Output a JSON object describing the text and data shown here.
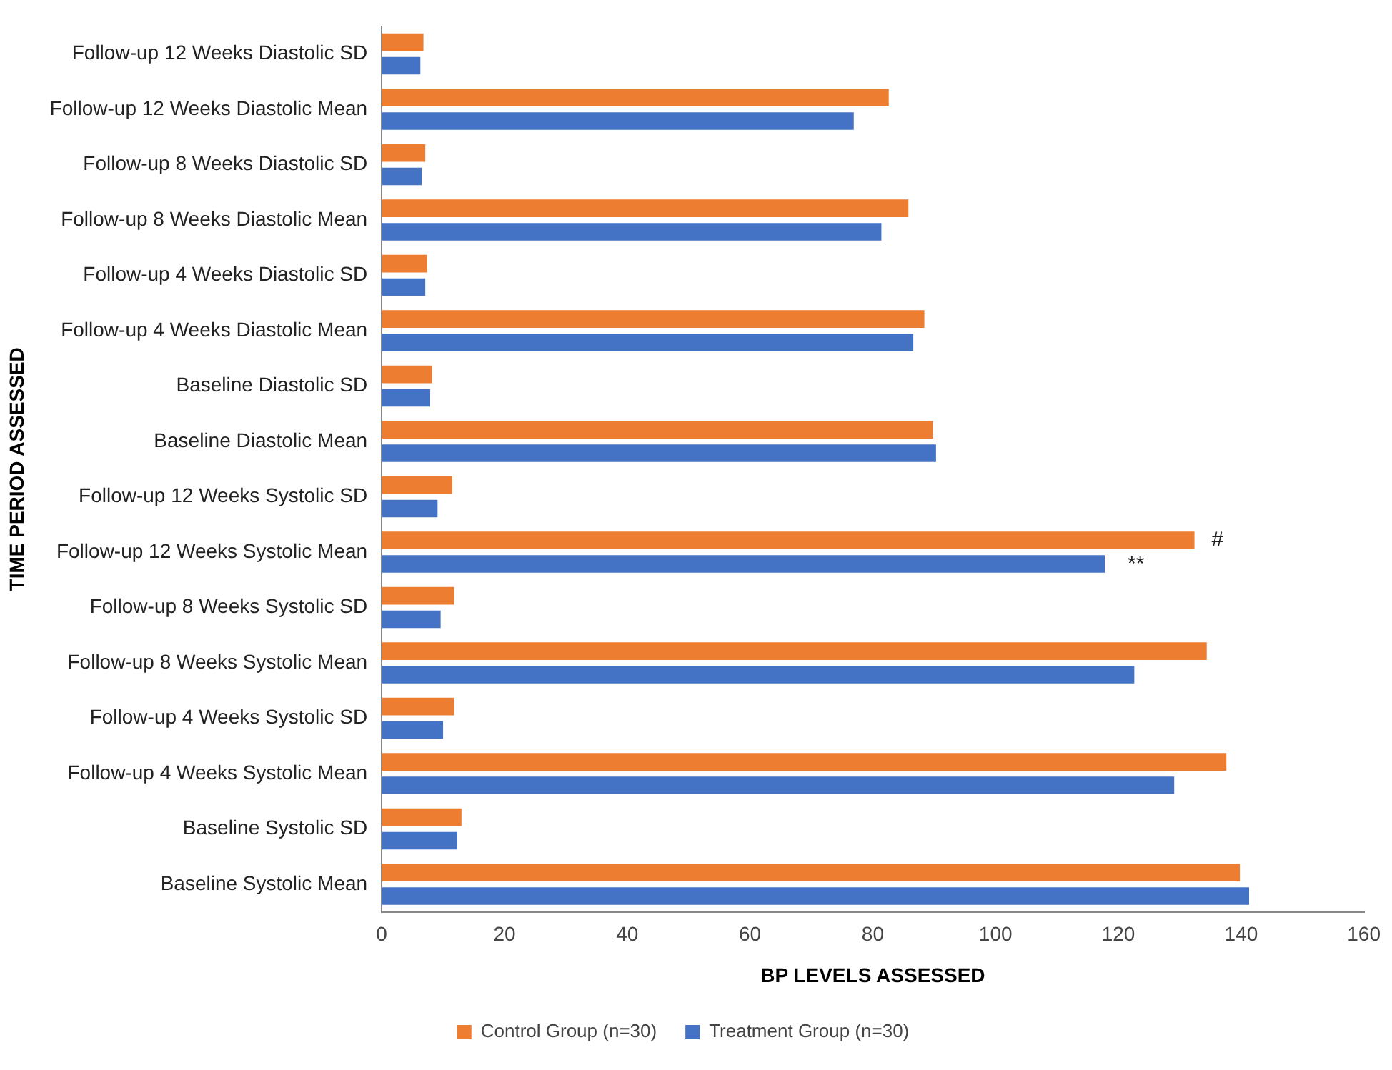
{
  "chart_data": {
    "type": "bar",
    "orientation": "horizontal",
    "xlabel": "BP LEVELS ASSESSED",
    "ylabel": "TIME PERIOD ASSESSED",
    "categories": [
      "Follow-up 12 Weeks Diastolic SD",
      "Follow-up 12 Weeks Diastolic Mean",
      "Follow-up 8 Weeks Diastolic SD",
      "Follow-up 8 Weeks Diastolic Mean",
      "Follow-up 4 Weeks Diastolic SD",
      "Follow-up 4 Weeks Diastolic Mean",
      "Baseline Diastolic SD",
      "Baseline Diastolic Mean",
      "Follow-up 12 Weeks Systolic SD",
      "Follow-up 12 Weeks Systolic Mean",
      "Follow-up 8 Weeks Systolic SD",
      "Follow-up 8 Weeks Systolic Mean",
      "Follow-up 4 Weeks Systolic SD",
      "Follow-up 4 Weeks Systolic Mean",
      "Baseline Systolic SD",
      "Baseline Systolic Mean"
    ],
    "series": [
      {
        "name": "Control Group (n=30)",
        "color": "#ed7d31",
        "values": [
          6.8,
          82.6,
          7.1,
          85.8,
          7.4,
          88.4,
          8.2,
          89.8,
          11.5,
          132.4,
          11.8,
          134.4,
          11.8,
          137.6,
          13.0,
          139.8
        ]
      },
      {
        "name": "Treatment Group (n=30)",
        "color": "#4472c4",
        "values": [
          6.3,
          76.9,
          6.5,
          81.4,
          7.1,
          86.6,
          7.9,
          90.3,
          9.1,
          117.8,
          9.6,
          122.6,
          10.0,
          129.1,
          12.3,
          141.3
        ]
      }
    ],
    "xlim": [
      0,
      160
    ],
    "xticks": [
      0,
      20,
      40,
      60,
      80,
      100,
      120,
      140,
      160
    ],
    "grid": false,
    "legend": "bottom",
    "annotations": [
      {
        "text": "#",
        "x": 132.4,
        "y": "Follow-up 12 Weeks Systolic Mean"
      },
      {
        "text": "**",
        "x": 117.8,
        "y": "Follow-up 12 Weeks Systolic Mean"
      }
    ]
  }
}
